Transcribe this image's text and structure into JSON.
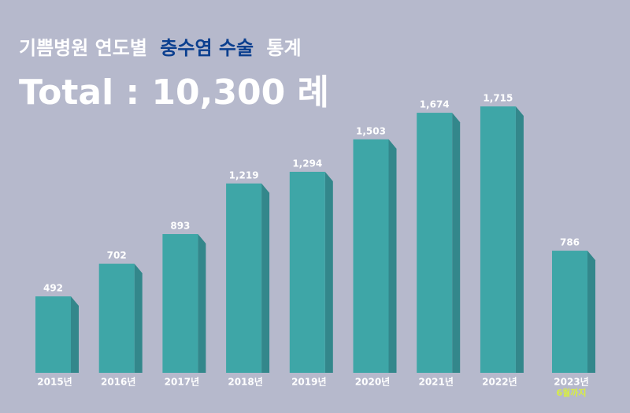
{
  "chart_data": {
    "type": "bar",
    "title_parts": [
      "기쁨병원 연도별",
      "충수염 수술",
      "통계"
    ],
    "title_highlight_color": "#0b3f8f",
    "subtitle": "Total : 10,300 례",
    "categories": [
      "2015년",
      "2016년",
      "2017년",
      "2018년",
      "2019년",
      "2020년",
      "2021년",
      "2022년",
      "2023년"
    ],
    "values": [
      492,
      702,
      893,
      1219,
      1294,
      1503,
      1674,
      1715,
      786
    ],
    "value_labels": [
      "492",
      "702",
      "893",
      "1,219",
      "1,294",
      "1,503",
      "1,674",
      "1,715",
      "786"
    ],
    "color": "#3ea6a7",
    "side_color": "#33878b",
    "annotations": [
      {
        "category": "2023년",
        "text": "6월까지",
        "color": "#d8ef3f"
      }
    ]
  }
}
